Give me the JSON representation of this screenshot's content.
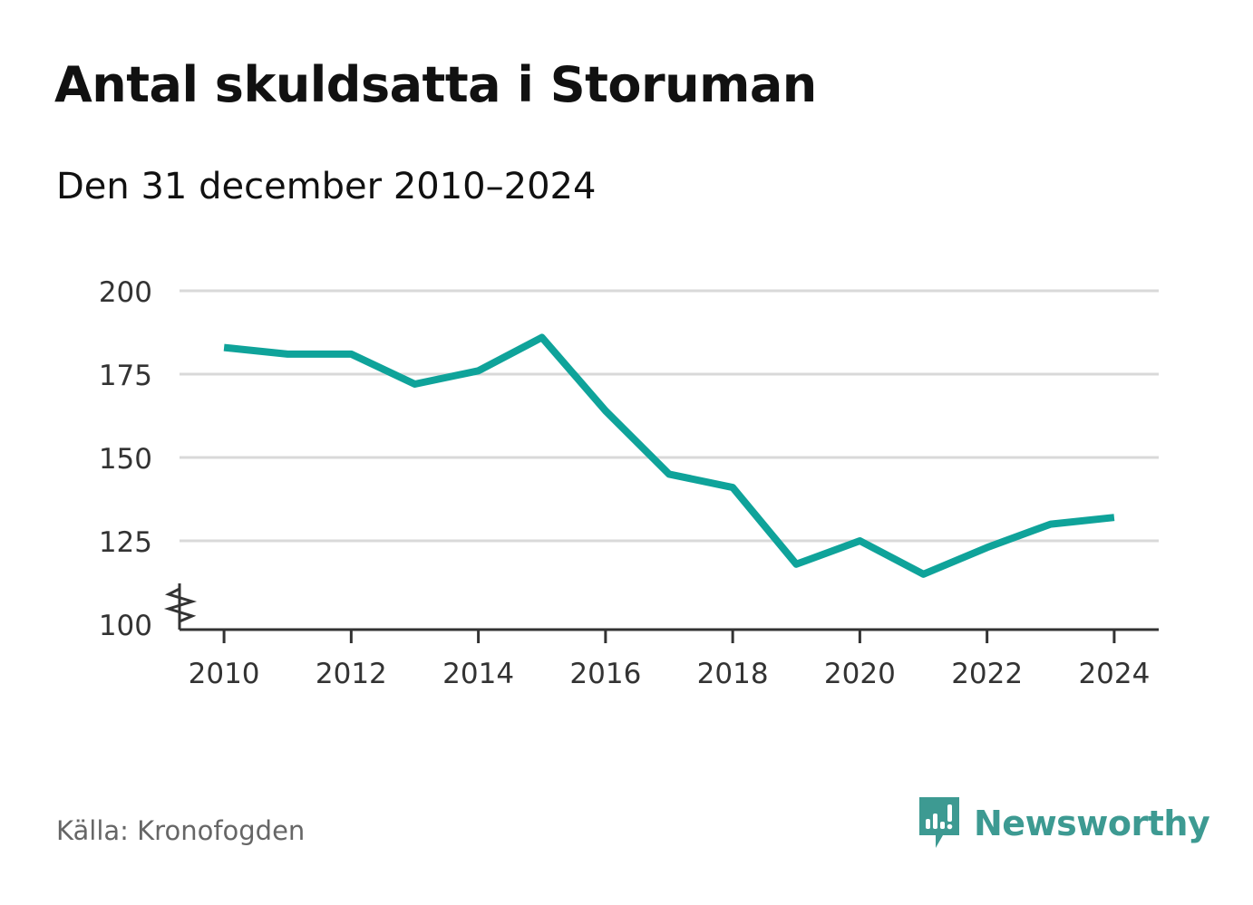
{
  "title": "Antal skuldsatta i Storuman",
  "subtitle": "Den 31 december 2010–2024",
  "source": "Källa: Kronofogden",
  "brand": {
    "name": "Newsworthy",
    "icon": "newsworthy-logo-icon",
    "color": "#3d9a92"
  },
  "chart_data": {
    "type": "line",
    "x": [
      2010,
      2011,
      2012,
      2013,
      2014,
      2015,
      2016,
      2017,
      2018,
      2019,
      2020,
      2021,
      2022,
      2023,
      2024
    ],
    "series": [
      {
        "values": [
          183,
          181,
          181,
          172,
          176,
          186,
          164,
          145,
          141,
          118,
          125,
          115,
          123,
          130,
          132
        ],
        "color": "#0fa39a"
      }
    ],
    "xticks": [
      "2010",
      "2012",
      "2014",
      "2016",
      "2018",
      "2020",
      "2022",
      "2024"
    ],
    "yticks": [
      "100",
      "125",
      "150",
      "175",
      "200"
    ],
    "ylim": [
      100,
      200
    ],
    "xlim": [
      2009.3,
      2024.7
    ],
    "grid": true,
    "y_axis_break": true,
    "gridColor": "#d9d9d9",
    "axisColor": "#333333"
  }
}
